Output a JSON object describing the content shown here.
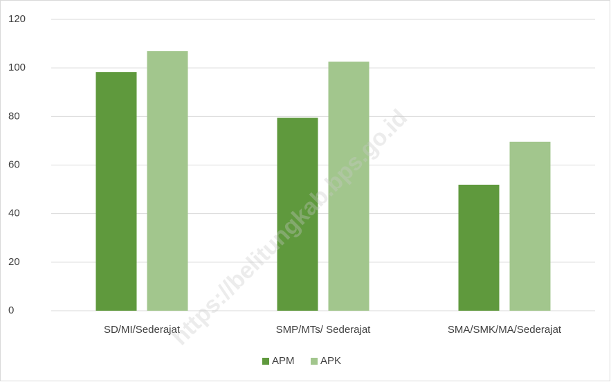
{
  "chart_data": {
    "type": "bar",
    "categories": [
      "SD/MI/Sederajat",
      "SMP/MTs/ Sederajat",
      "SMA/SMK/MA/Sederajat"
    ],
    "series": [
      {
        "name": "APM",
        "color": "#5f993d",
        "values": [
          98.3,
          79.5,
          51.9
        ]
      },
      {
        "name": "APK",
        "color": "#a2c68d",
        "values": [
          106.9,
          102.6,
          69.6
        ]
      }
    ],
    "ylim": [
      0,
      120
    ],
    "yticks": [
      0,
      20,
      40,
      60,
      80,
      100,
      120
    ],
    "grid": true,
    "legend": "bottom",
    "watermark": "https://belitungkab.bps.go.id"
  }
}
